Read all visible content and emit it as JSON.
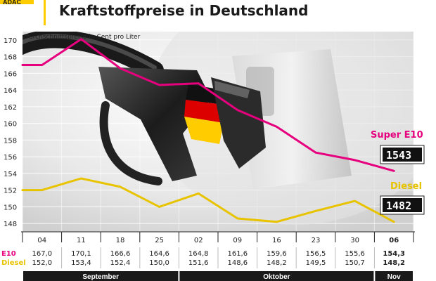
{
  "header": {
    "logo_text": "ADAC",
    "title": "Kraftstoffpreise in Deutschland"
  },
  "chart_data": {
    "type": "line",
    "subtitle": "Durchschnittspreise in Cent pro Liter",
    "ylim": [
      147,
      171
    ],
    "yticks": [
      148,
      150,
      152,
      154,
      156,
      158,
      160,
      162,
      164,
      166,
      168,
      170
    ],
    "grid": true,
    "categories": [
      "04",
      "11",
      "18",
      "25",
      "02",
      "09",
      "16",
      "23",
      "30",
      "06"
    ],
    "months": [
      {
        "label": "September",
        "span": [
          0,
          3
        ]
      },
      {
        "label": "Oktober",
        "span": [
          4,
          8
        ]
      },
      {
        "label": "Nov",
        "span": [
          9,
          9
        ]
      }
    ],
    "series": [
      {
        "name": "Super E10",
        "row_label": "E10",
        "color": "#e6007e",
        "values": [
          167.0,
          170.1,
          166.6,
          164.6,
          164.8,
          161.6,
          159.6,
          156.5,
          155.6,
          154.3
        ],
        "labels": [
          "167,0",
          "170,1",
          "166,6",
          "164,6",
          "164,8",
          "161,6",
          "159,6",
          "156,5",
          "155,6",
          "154,3"
        ],
        "display": "1543"
      },
      {
        "name": "Diesel",
        "row_label": "Diesel",
        "color": "#e8c300",
        "values": [
          152.0,
          153.4,
          152.4,
          150.0,
          151.6,
          148.6,
          148.2,
          149.5,
          150.7,
          148.2
        ],
        "labels": [
          "152,0",
          "153,4",
          "152,4",
          "150,0",
          "151,6",
          "148,6",
          "148,2",
          "149,5",
          "150,7",
          "148,2"
        ],
        "display": "1482"
      }
    ]
  }
}
